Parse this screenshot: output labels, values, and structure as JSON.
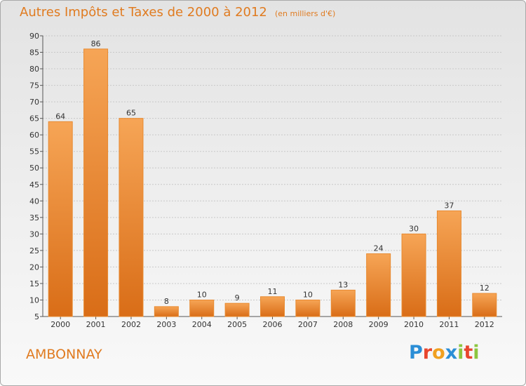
{
  "title": "Autres Impôts et Taxes de 2000 à 2012",
  "subtitle": "(en milliers d'€)",
  "city": "AMBONNAY",
  "logo": [
    "P",
    "r",
    "o",
    "x",
    "i",
    "t",
    "i"
  ],
  "colors": {
    "accent": "#e07b20",
    "bar_light": "#f6a556",
    "bar_dark": "#d96d17"
  },
  "chart_data": {
    "type": "bar",
    "title": "Autres Impôts et Taxes de 2000 à 2012",
    "subtitle": "(en milliers d'€)",
    "categories": [
      "2000",
      "2001",
      "2002",
      "2003",
      "2004",
      "2005",
      "2006",
      "2007",
      "2008",
      "2009",
      "2010",
      "2011",
      "2012"
    ],
    "values": [
      64,
      86,
      65,
      8,
      10,
      9,
      11,
      10,
      13,
      24,
      30,
      37,
      12
    ],
    "xlabel": "",
    "ylabel": "",
    "ylim": [
      5,
      90
    ],
    "yticks": [
      5,
      10,
      15,
      20,
      25,
      30,
      35,
      40,
      45,
      50,
      55,
      60,
      65,
      70,
      75,
      80,
      85,
      90
    ],
    "grid": true,
    "legend": "none"
  }
}
